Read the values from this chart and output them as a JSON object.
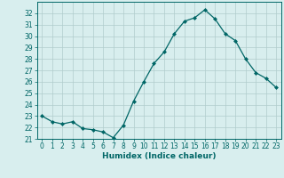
{
  "x": [
    0,
    1,
    2,
    3,
    4,
    5,
    6,
    7,
    8,
    9,
    10,
    11,
    12,
    13,
    14,
    15,
    16,
    17,
    18,
    19,
    20,
    21,
    22,
    23
  ],
  "y": [
    23.0,
    22.5,
    22.3,
    22.5,
    21.9,
    21.8,
    21.6,
    21.1,
    22.2,
    24.3,
    26.0,
    27.6,
    28.6,
    30.2,
    31.3,
    31.6,
    32.3,
    31.5,
    30.2,
    29.6,
    28.0,
    26.8,
    26.3,
    25.5
  ],
  "line_color": "#006666",
  "marker": "D",
  "marker_size": 2.0,
  "linewidth": 0.9,
  "xlabel": "Humidex (Indice chaleur)",
  "ylim": [
    21,
    33
  ],
  "xlim": [
    -0.5,
    23.5
  ],
  "yticks": [
    21,
    22,
    23,
    24,
    25,
    26,
    27,
    28,
    29,
    30,
    31,
    32
  ],
  "xticks": [
    0,
    1,
    2,
    3,
    4,
    5,
    6,
    7,
    8,
    9,
    10,
    11,
    12,
    13,
    14,
    15,
    16,
    17,
    18,
    19,
    20,
    21,
    22,
    23
  ],
  "bg_color": "#d8eeee",
  "grid_color": "#b0cccc",
  "tick_color": "#006666",
  "label_color": "#006666",
  "xlabel_fontsize": 6.5,
  "tick_fontsize": 5.5
}
